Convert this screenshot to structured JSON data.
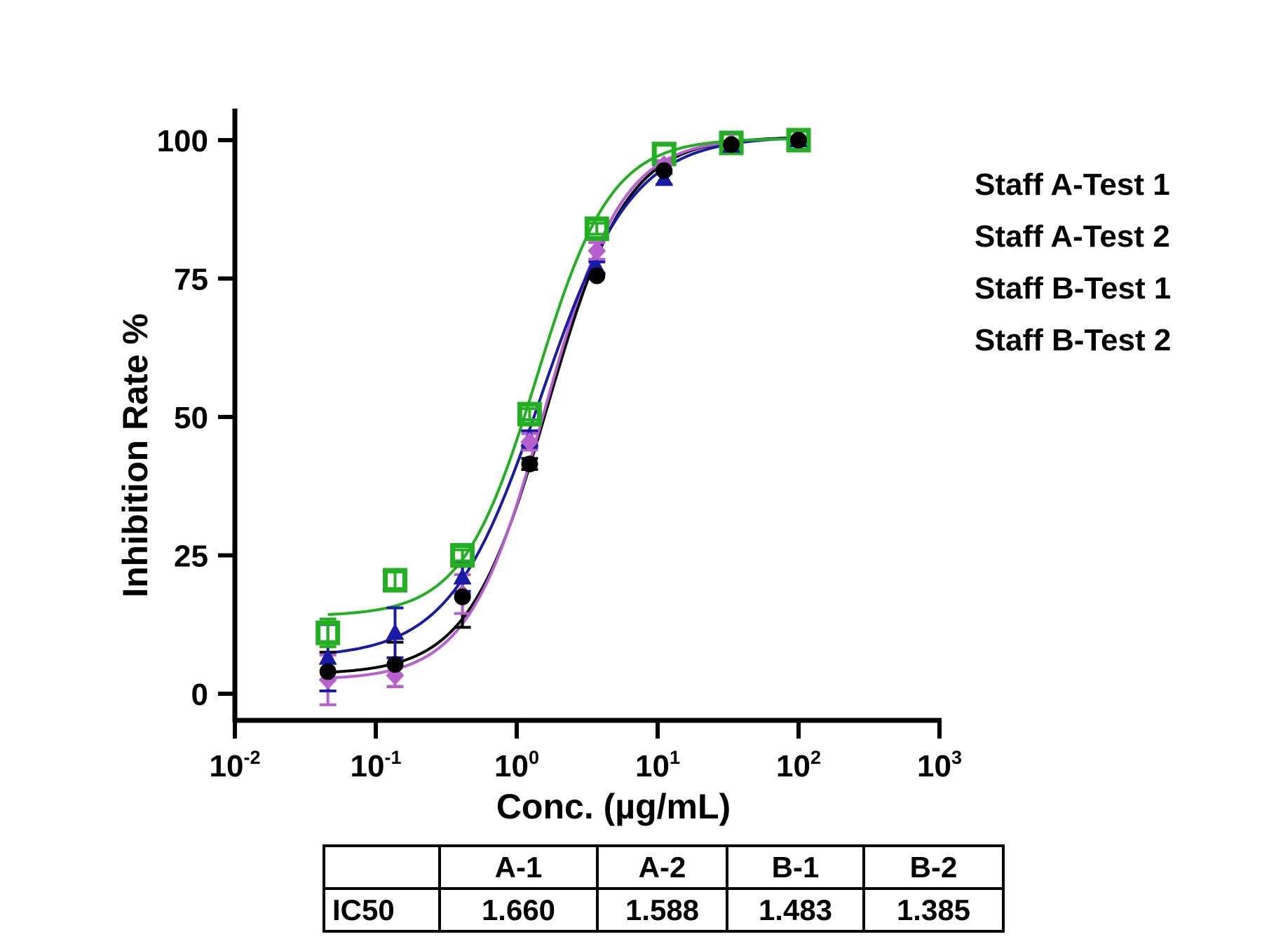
{
  "chart_data": {
    "type": "scatter",
    "xlabel": "Conc. (µg/mL)",
    "ylabel": "Inhibition Rate %",
    "x_scale": "log",
    "xlim": [
      0.01,
      1000
    ],
    "ylim": [
      -5,
      105
    ],
    "x_ticks": [
      {
        "base": "10",
        "exp": "-2",
        "value": 0.01
      },
      {
        "base": "10",
        "exp": "-1",
        "value": 0.1
      },
      {
        "base": "10",
        "exp": "0",
        "value": 1
      },
      {
        "base": "10",
        "exp": "1",
        "value": 10
      },
      {
        "base": "10",
        "exp": "2",
        "value": 100
      },
      {
        "base": "10",
        "exp": "3",
        "value": 1000
      }
    ],
    "y_ticks": [
      0,
      25,
      50,
      75,
      100
    ],
    "x": [
      0.0457,
      0.137,
      0.412,
      1.235,
      3.704,
      11.11,
      33.33,
      100
    ],
    "series": [
      {
        "name": "Staff A-Test 1",
        "color": "#000000",
        "marker": "circle",
        "values": [
          4,
          5.3,
          17.5,
          41.5,
          75.5,
          94.5,
          99.2,
          100
        ],
        "errors": [
          3.5,
          4,
          5.5,
          1,
          0.5,
          0.5,
          0.3,
          0.3
        ],
        "ic50": 1.66,
        "bottom": 3.5,
        "top": 100.6,
        "hill": 1.55
      },
      {
        "name": "Staff A-Test 2",
        "color": "#b85fd0",
        "marker": "diamond",
        "values": [
          2.5,
          3.3,
          18,
          45.5,
          80,
          95.5,
          99.5,
          100
        ],
        "errors": [
          4.5,
          2,
          3.5,
          1.5,
          1.5,
          0.8,
          0.5,
          0.3
        ],
        "ic50": 1.588,
        "bottom": 2.5,
        "top": 100.4,
        "hill": 1.6
      },
      {
        "name": "Staff B-Test 1",
        "color": "#1a1aa8",
        "marker": "triangle",
        "values": [
          6.5,
          11,
          21,
          46,
          77,
          93,
          99,
          100
        ],
        "errors": [
          6,
          4.5,
          2.5,
          1.5,
          1,
          1,
          0.5,
          0.3
        ],
        "ic50": 1.483,
        "bottom": 6.5,
        "top": 100.7,
        "hill": 1.35
      },
      {
        "name": "Staff B-Test 2",
        "color": "#22b022",
        "marker": "square",
        "values": [
          11,
          20.5,
          25,
          50.5,
          84,
          97.5,
          99.5,
          100
        ],
        "errors": [
          2.5,
          1.5,
          1,
          1,
          1,
          0.5,
          0.3,
          0.3
        ],
        "ic50": 1.385,
        "bottom": 14,
        "top": 100.3,
        "hill": 1.65
      }
    ]
  },
  "ic50_table": {
    "headers": [
      "",
      "A-1",
      "A-2",
      "B-1",
      "B-2"
    ],
    "row_label": "IC50",
    "values": [
      "1.660",
      "1.588",
      "1.483",
      "1.385"
    ]
  }
}
